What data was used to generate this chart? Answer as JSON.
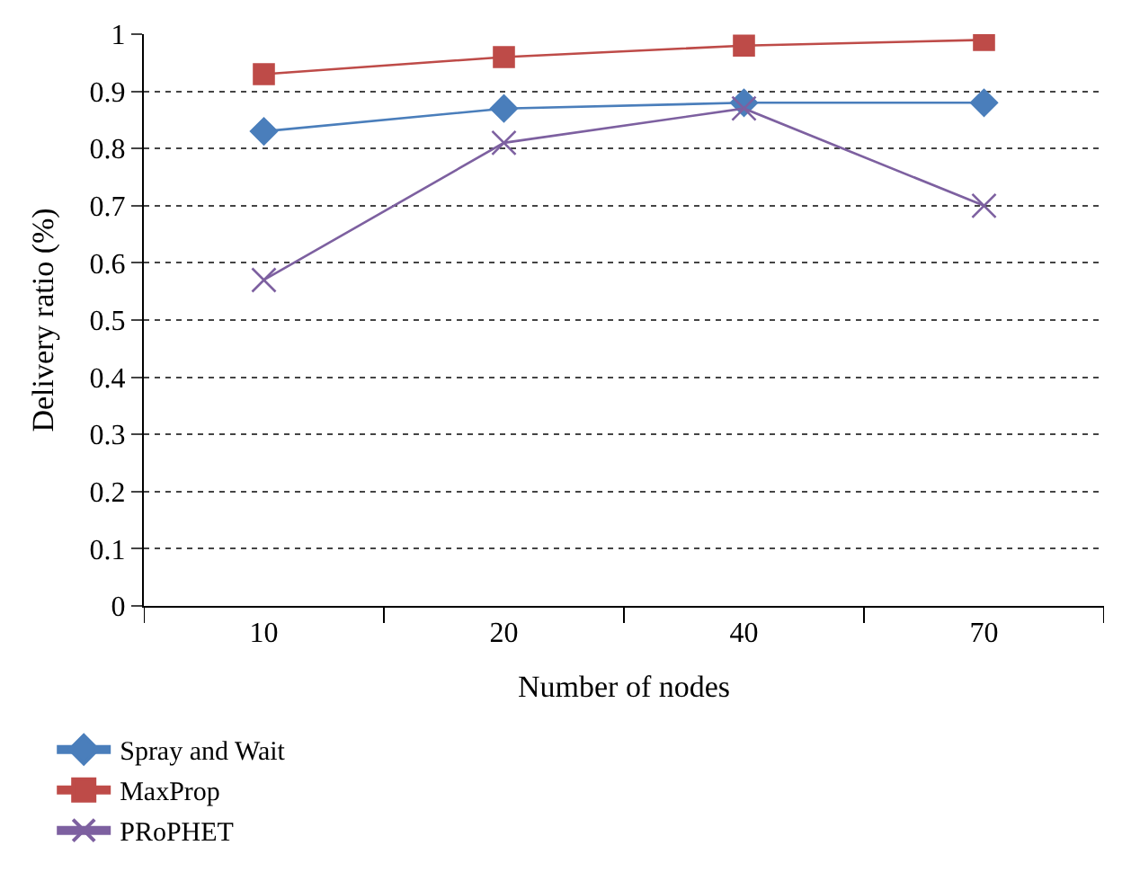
{
  "chart_data": {
    "type": "line",
    "xlabel": "Number of nodes",
    "ylabel": "Delivery ratio (%)",
    "categories": [
      "10",
      "20",
      "40",
      "70"
    ],
    "series": [
      {
        "name": "Spray and Wait",
        "color": "#4a7ebb",
        "marker": "diamond",
        "values": [
          0.83,
          0.87,
          0.88,
          0.88
        ]
      },
      {
        "name": "MaxProp",
        "color": "#be4b48",
        "marker": "square",
        "values": [
          0.93,
          0.96,
          0.98,
          0.99
        ]
      },
      {
        "name": "PRoPHET",
        "color": "#7d60a0",
        "marker": "cross",
        "values": [
          0.57,
          0.81,
          0.87,
          0.7
        ]
      }
    ],
    "ylim": [
      0,
      1
    ],
    "yticks": [
      0,
      0.1,
      0.2,
      0.3,
      0.4,
      0.5,
      0.6,
      0.7,
      0.8,
      0.9,
      1
    ],
    "grid": "y",
    "legend": "bottom left",
    "line_style": "solid"
  }
}
